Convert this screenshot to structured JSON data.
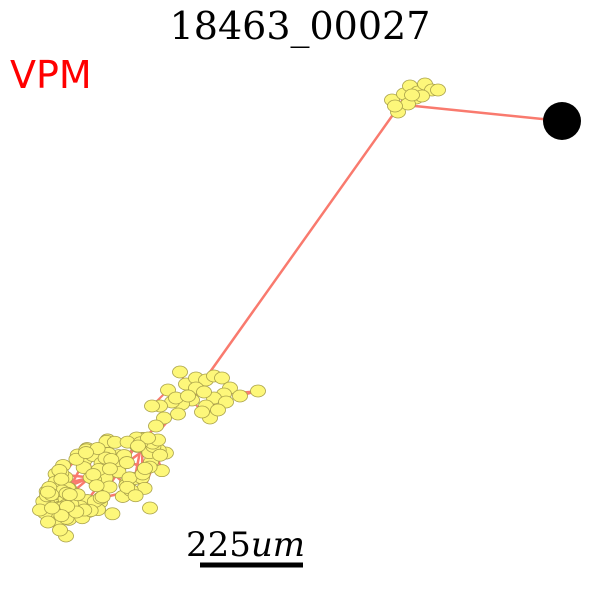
{
  "header": {
    "title": "18463_00027"
  },
  "region": {
    "label": "VPM",
    "color": "#ff0000"
  },
  "scalebar": {
    "value": "225",
    "unit": "um"
  },
  "colors": {
    "branch": "#f97a6e",
    "node_fill": "#fdf77a",
    "node_stroke": "#a9a14a",
    "soma": "#000000"
  }
}
